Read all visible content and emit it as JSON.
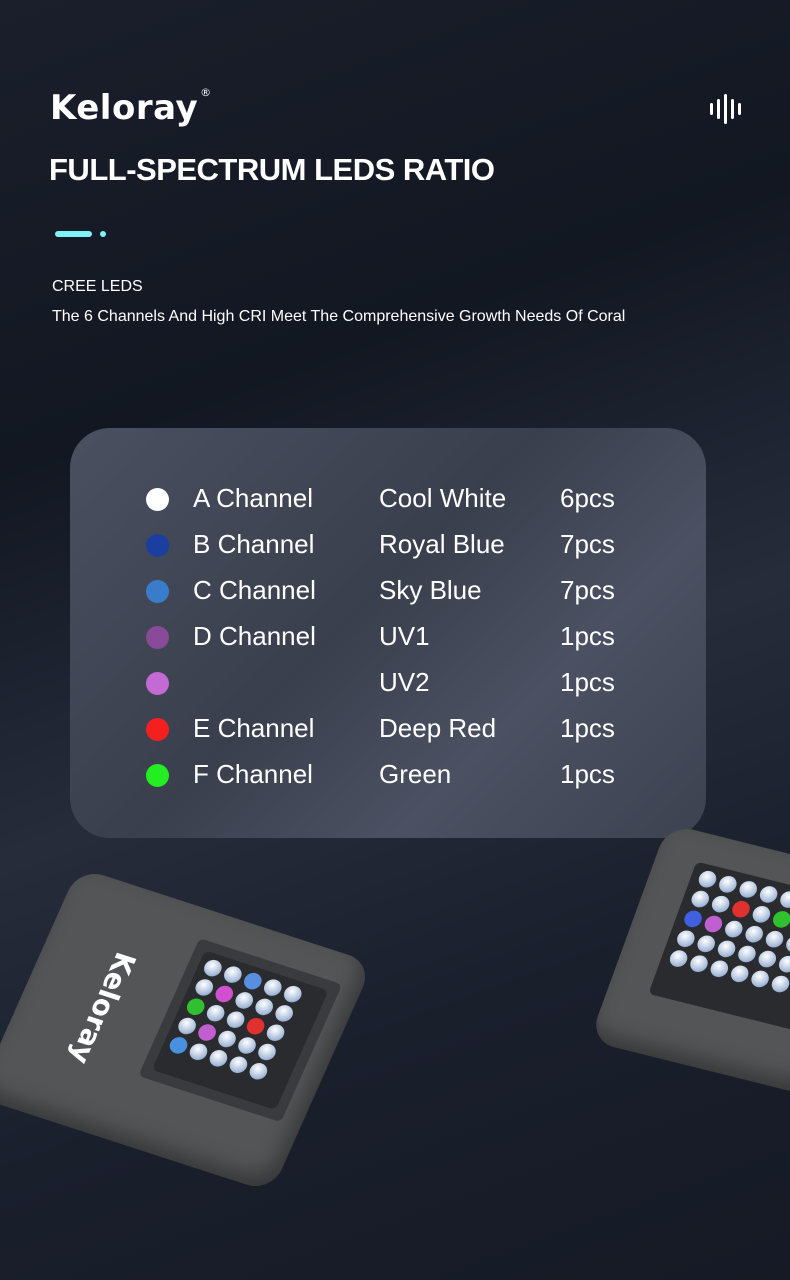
{
  "header": {
    "logo": "Keloray",
    "registered_mark": "®",
    "title": "FULL-SPECTRUM LEDS RATIO",
    "subtitle": "CREE LEDS",
    "description": "The 6 Channels And High CRI Meet The Comprehensive Growth Needs Of Coral",
    "accent_color": "#7ef2f6"
  },
  "channels": [
    {
      "channel": "A Channel",
      "color_name": "Cool White",
      "qty": "6pcs",
      "color": "#ffffff"
    },
    {
      "channel": "B Channel",
      "color_name": "Royal Blue",
      "qty": "7pcs",
      "color": "#1a3fa0"
    },
    {
      "channel": "C Channel",
      "color_name": "Sky Blue",
      "qty": "7pcs",
      "color": "#3a7ccc"
    },
    {
      "channel": "D Channel",
      "color_name": "UV1",
      "qty": "1pcs",
      "color": "#8a4a9a"
    },
    {
      "channel": "",
      "color_name": "UV2",
      "qty": "1pcs",
      "color": "#c46ad4"
    },
    {
      "channel": "E Channel",
      "color_name": "Deep Red",
      "qty": "1pcs",
      "color": "#f42020"
    },
    {
      "channel": "F Channel",
      "color_name": "Green",
      "qty": "1pcs",
      "color": "#22ee22"
    }
  ],
  "product": {
    "brand_on_device": "Keloray"
  }
}
